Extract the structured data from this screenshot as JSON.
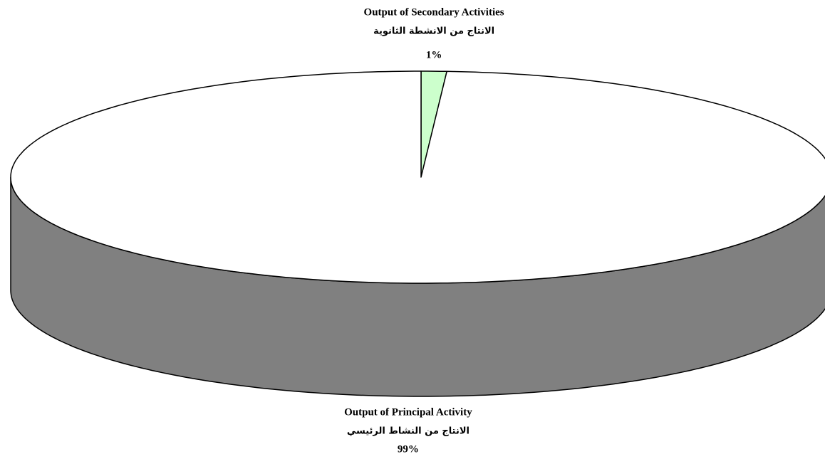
{
  "chart_data": {
    "type": "pie",
    "categories": [
      "Output of Secondary Activities",
      "Output of Principal Activity"
    ],
    "categories_ar": [
      "الانتاج من الانشطة الثانوية",
      "الانتاج من النشاط الرئيسي"
    ],
    "values": [
      1,
      99
    ],
    "value_labels": [
      "1%",
      "99%"
    ],
    "colors": [
      "#ccffcc",
      "#ffffff"
    ]
  }
}
